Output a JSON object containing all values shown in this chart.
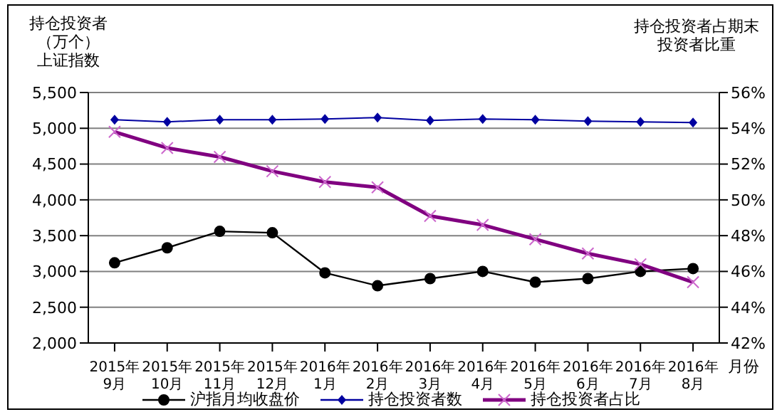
{
  "chart_data": {
    "type": "line",
    "ylabel": "持仓投资者（万个）",
    "y2label": "持仓投资者占期末投资者比重",
    "xlabel": "月份",
    "annotations": [
      "上证指数"
    ],
    "categories": [
      "2015年\n9月",
      "2015年\n10月",
      "2015年\n11月",
      "2015年\n12月",
      "2016年\n1月",
      "2016年\n2月",
      "2016年\n3月",
      "2016年\n4月",
      "2016年\n5月",
      "2016年\n6月",
      "2016年\n7月",
      "2016年\n8月"
    ],
    "series": [
      {
        "name": "沪指月均收盘价",
        "color": "#000000",
        "marker": "circle",
        "values": [
          3120,
          3330,
          3560,
          3540,
          2980,
          2800,
          2900,
          3000,
          2850,
          2900,
          3000,
          3040
        ]
      },
      {
        "name": "持仓投资者数",
        "color": "#0000a0",
        "marker": "diamond",
        "values": [
          5120,
          5090,
          5120,
          5120,
          5130,
          5150,
          5110,
          5130,
          5120,
          5100,
          5090,
          5080
        ]
      },
      {
        "name": "持仓投资者占比",
        "color": "#800080",
        "marker": "cross",
        "axis": "y2",
        "values": [
          53.8,
          52.9,
          52.4,
          51.6,
          51,
          50.7,
          49.1,
          48.6,
          47.8,
          47,
          46.4,
          45.4
        ]
      }
    ],
    "ylim": [
      2000,
      5500
    ],
    "yticks": [
      {
        "value": 2000,
        "label": "2,000"
      },
      {
        "value": 2500,
        "label": "2,500"
      },
      {
        "value": 3000,
        "label": "3,000"
      },
      {
        "value": 3500,
        "label": "3,500"
      },
      {
        "value": 4000,
        "label": "4,000"
      },
      {
        "value": 4500,
        "label": "4,500"
      },
      {
        "value": 5000,
        "label": "5,000"
      },
      {
        "value": 5500,
        "label": "5,500"
      }
    ],
    "y2lim": [
      42,
      56
    ],
    "y2ticks": [
      {
        "value": 42,
        "label": "42%"
      },
      {
        "value": 44,
        "label": "44%"
      },
      {
        "value": 46,
        "label": "46%"
      },
      {
        "value": 48,
        "label": "48%"
      },
      {
        "value": 50,
        "label": "50%"
      },
      {
        "value": 52,
        "label": "52%"
      },
      {
        "value": 54,
        "label": "54%"
      },
      {
        "value": 56,
        "label": "56%"
      }
    ],
    "grid": "y",
    "legend": "bottom"
  }
}
